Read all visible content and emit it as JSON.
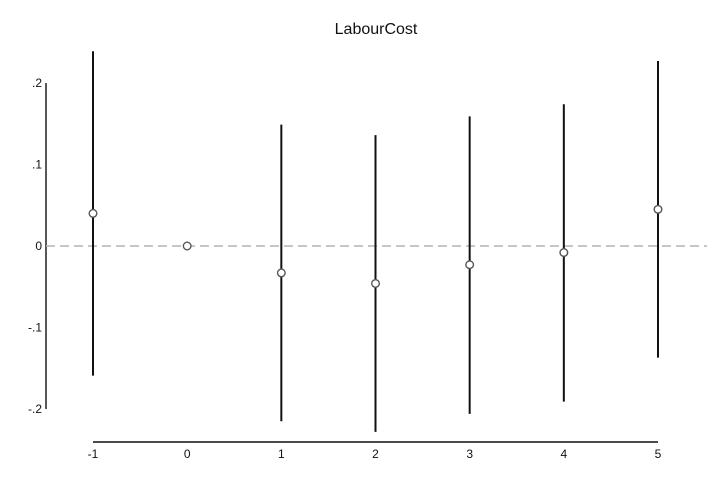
{
  "chart_data": {
    "type": "scatter",
    "title": "LabourCost",
    "xlabel": "",
    "ylabel": "",
    "x": [
      -1,
      0,
      1,
      2,
      3,
      4,
      5
    ],
    "x_tick_labels": [
      "-1",
      "0",
      "1",
      "2",
      "3",
      "4",
      "5"
    ],
    "y_ticks": [
      0.2,
      0.1,
      0,
      -0.1,
      -0.2
    ],
    "y_tick_labels": [
      ".2",
      ".1",
      "0",
      "-.1",
      "-.2"
    ],
    "ylim": [
      -0.23,
      0.24
    ],
    "xlim": [
      -1,
      5
    ],
    "grid": false,
    "reference_line": {
      "y": 0,
      "style": "dashed",
      "color": "#b4b4b4"
    },
    "series": [
      {
        "values": [
          0.04,
          0.0,
          -0.033,
          -0.046,
          -0.023,
          -0.008,
          0.045
        ],
        "ci_lower": [
          -0.159,
          0.0,
          -0.215,
          -0.228,
          -0.206,
          -0.191,
          -0.137
        ],
        "ci_upper": [
          0.239,
          0.0,
          0.149,
          0.136,
          0.159,
          0.174,
          0.227
        ],
        "marker": "hollow-circle",
        "marker_color": "#555555",
        "ci_color": "#111111"
      }
    ]
  }
}
